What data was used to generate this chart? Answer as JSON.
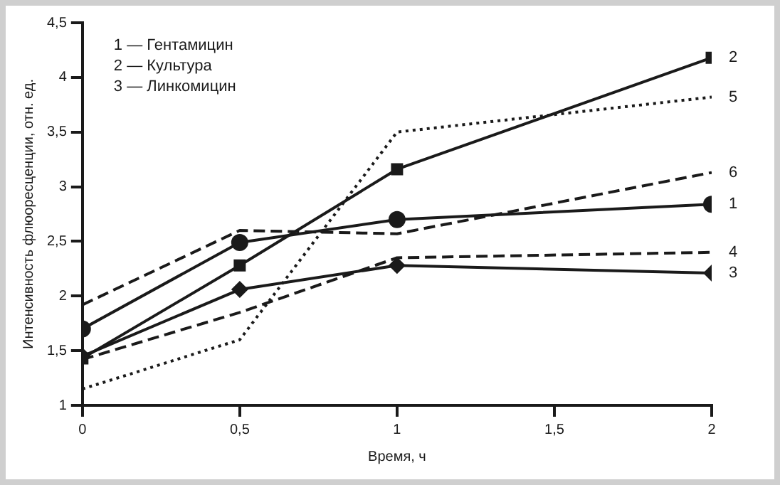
{
  "chart_data": {
    "type": "line",
    "xlabel": "Время, ч",
    "ylabel": "Интенсивность флюоресценции, отн. ед.",
    "x": [
      0,
      0.5,
      1,
      2
    ],
    "xlim": [
      0,
      2
    ],
    "xticks": [
      0,
      {
        "value": 0.5,
        "label": "0,5"
      },
      1,
      {
        "value": 1.5,
        "label": "1,5"
      },
      2
    ],
    "ylim": [
      1,
      4.5
    ],
    "yticks": [
      1,
      {
        "value": 1.5,
        "label": "1,5"
      },
      2,
      {
        "value": 2.5,
        "label": "2,5"
      },
      3,
      {
        "value": 3.5,
        "label": "3,5"
      },
      4,
      {
        "value": 4.5,
        "label": "4,5"
      }
    ],
    "grid": false,
    "legend": false,
    "annotations": [
      "1 — Гентамицин",
      "2 — Культура",
      "3 — Линкомицин"
    ],
    "series": [
      {
        "name": "1",
        "color": "#1a1a1a",
        "marker": "circle",
        "line_style": "solid",
        "values": [
          1.7,
          2.49,
          2.7,
          2.84
        ]
      },
      {
        "name": "2",
        "color": "#1a1a1a",
        "marker": "square",
        "line_style": "solid",
        "values": [
          1.43,
          2.28,
          3.16,
          4.18
        ]
      },
      {
        "name": "3",
        "color": "#1a1a1a",
        "marker": "diamond",
        "line_style": "solid",
        "values": [
          1.45,
          2.06,
          2.28,
          2.21
        ]
      },
      {
        "name": "4",
        "color": "#1a1a1a",
        "marker": "none",
        "line_style": "dashed",
        "values": [
          1.42,
          1.85,
          2.35,
          2.4
        ]
      },
      {
        "name": "5",
        "color": "#1a1a1a",
        "marker": "none",
        "line_style": "dotted",
        "values": [
          1.15,
          1.6,
          3.5,
          3.82
        ]
      },
      {
        "name": "6",
        "color": "#1a1a1a",
        "marker": "none",
        "line_style": "dashed",
        "values": [
          1.92,
          2.6,
          2.57,
          3.13
        ]
      }
    ]
  }
}
